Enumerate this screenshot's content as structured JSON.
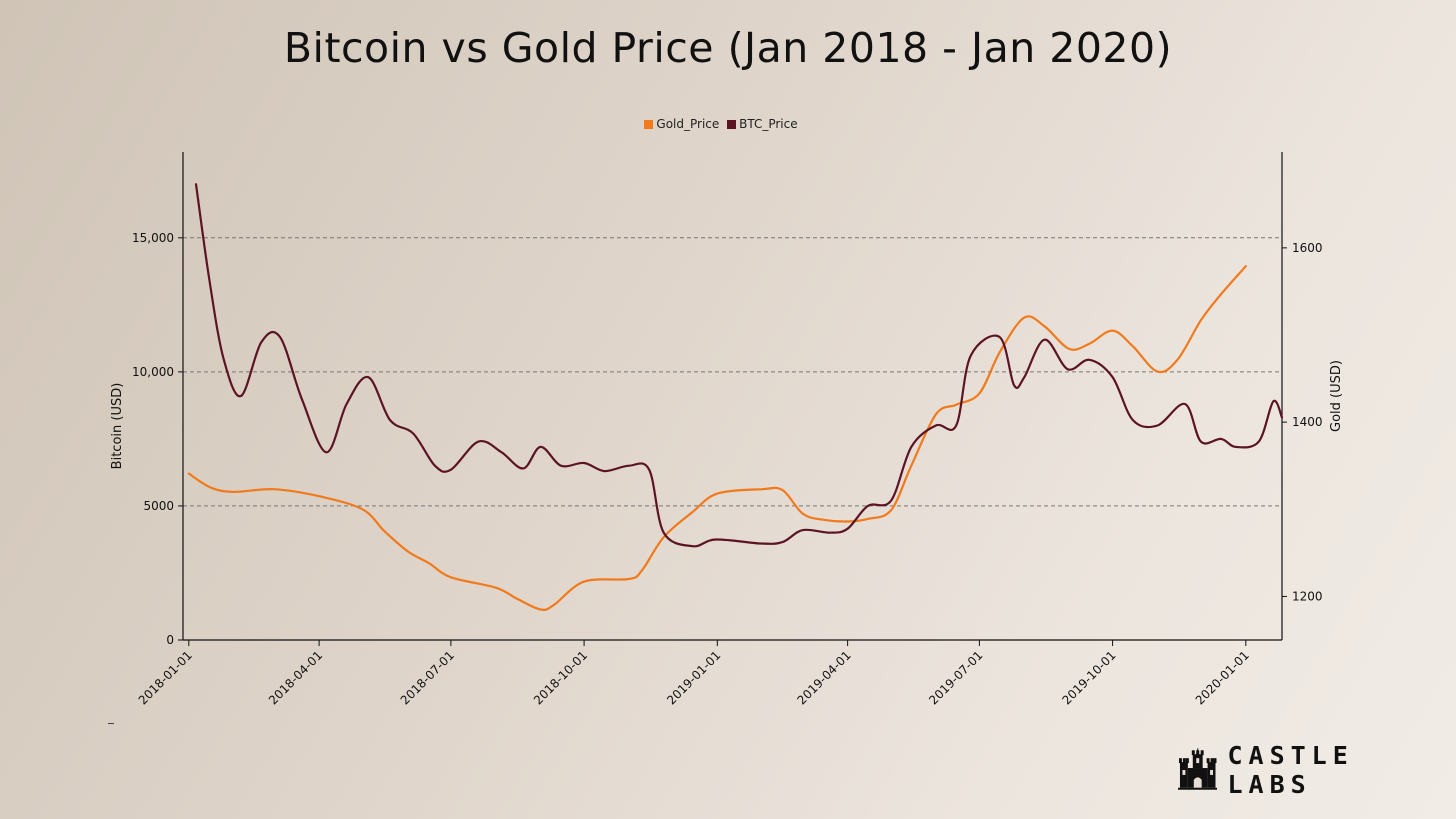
{
  "title": "Bitcoin vs Gold Price (Jan 2018 - Jan 2020)",
  "logo": {
    "text": "CASTLE LABS",
    "icon": "castle-icon"
  },
  "colors": {
    "gold": "#f07a1c",
    "btc": "#5c1424",
    "axis": "#111111",
    "grid": "#777777"
  },
  "chart_data": {
    "type": "line",
    "title": "Bitcoin vs Gold Price (Jan 2018 - Jan 2020)",
    "xlabel": "",
    "x_ticks": [
      "2018-01-01",
      "2018-04-01",
      "2018-07-01",
      "2018-10-01",
      "2019-01-01",
      "2019-04-01",
      "2019-07-01",
      "2019-10-01",
      "2020-01-01"
    ],
    "x_range": [
      "2017-12-28",
      "2020-01-26"
    ],
    "legend": [
      "Gold_Price",
      "BTC_Price"
    ],
    "legend_position": "top-center",
    "y_left": {
      "label": "Bitcoin (USD)",
      "range": [
        0,
        18200
      ],
      "ticks": [
        0,
        5000,
        10000,
        15000
      ],
      "tick_labels": [
        "0",
        "5000",
        "10,000",
        "15,000"
      ],
      "grid": true
    },
    "y_right": {
      "label": "Gold (USD)",
      "range": [
        1150,
        1710
      ],
      "ticks": [
        1200,
        1400,
        1600
      ],
      "tick_labels": [
        "1200",
        "1400",
        "1600"
      ]
    },
    "series": [
      {
        "name": "Gold_Price",
        "axis": "right",
        "points": [
          [
            "2018-01-01",
            1341
          ],
          [
            "2018-01-16",
            1325
          ],
          [
            "2018-02-01",
            1320
          ],
          [
            "2018-03-01",
            1323
          ],
          [
            "2018-04-01",
            1315
          ],
          [
            "2018-05-01",
            1300
          ],
          [
            "2018-05-16",
            1275
          ],
          [
            "2018-06-01",
            1252
          ],
          [
            "2018-06-16",
            1238
          ],
          [
            "2018-07-01",
            1222
          ],
          [
            "2018-08-01",
            1210
          ],
          [
            "2018-08-16",
            1197
          ],
          [
            "2018-09-01",
            1185
          ],
          [
            "2018-09-10",
            1190
          ],
          [
            "2018-10-01",
            1217
          ],
          [
            "2018-11-01",
            1220
          ],
          [
            "2018-11-10",
            1230
          ],
          [
            "2018-11-25",
            1268
          ],
          [
            "2018-12-15",
            1297
          ],
          [
            "2019-01-01",
            1318
          ],
          [
            "2019-02-01",
            1323
          ],
          [
            "2019-02-15",
            1322
          ],
          [
            "2019-03-01",
            1295
          ],
          [
            "2019-03-15",
            1288
          ],
          [
            "2019-04-01",
            1286
          ],
          [
            "2019-04-15",
            1289
          ],
          [
            "2019-05-01",
            1299
          ],
          [
            "2019-05-15",
            1350
          ],
          [
            "2019-06-01",
            1409
          ],
          [
            "2019-06-15",
            1420
          ],
          [
            "2019-07-01",
            1433
          ],
          [
            "2019-07-15",
            1480
          ],
          [
            "2019-08-01",
            1520
          ],
          [
            "2019-08-15",
            1510
          ],
          [
            "2019-09-01",
            1484
          ],
          [
            "2019-09-15",
            1490
          ],
          [
            "2019-10-01",
            1505
          ],
          [
            "2019-10-15",
            1487
          ],
          [
            "2019-11-01",
            1458
          ],
          [
            "2019-11-15",
            1472
          ],
          [
            "2019-12-01",
            1517
          ],
          [
            "2019-12-15",
            1547
          ],
          [
            "2020-01-01",
            1579
          ]
        ]
      },
      {
        "name": "BTC_Price",
        "axis": "left",
        "points": [
          [
            "2018-01-06",
            17000
          ],
          [
            "2018-01-15",
            13500
          ],
          [
            "2018-01-25",
            10500
          ],
          [
            "2018-02-06",
            9100
          ],
          [
            "2018-02-20",
            11100
          ],
          [
            "2018-03-05",
            11300
          ],
          [
            "2018-03-20",
            9000
          ],
          [
            "2018-04-06",
            7000
          ],
          [
            "2018-04-20",
            8800
          ],
          [
            "2018-05-05",
            9800
          ],
          [
            "2018-05-20",
            8200
          ],
          [
            "2018-06-05",
            7700
          ],
          [
            "2018-06-20",
            6500
          ],
          [
            "2018-07-01",
            6350
          ],
          [
            "2018-07-20",
            7400
          ],
          [
            "2018-08-05",
            7000
          ],
          [
            "2018-08-20",
            6400
          ],
          [
            "2018-09-01",
            7200
          ],
          [
            "2018-09-15",
            6500
          ],
          [
            "2018-10-01",
            6600
          ],
          [
            "2018-10-15",
            6300
          ],
          [
            "2018-11-01",
            6500
          ],
          [
            "2018-11-15",
            6350
          ],
          [
            "2018-11-25",
            4000
          ],
          [
            "2018-12-15",
            3500
          ],
          [
            "2018-12-31",
            3750
          ],
          [
            "2019-01-31",
            3600
          ],
          [
            "2019-02-15",
            3650
          ],
          [
            "2019-03-01",
            4100
          ],
          [
            "2019-03-20",
            4000
          ],
          [
            "2019-04-01",
            4150
          ],
          [
            "2019-04-15",
            5000
          ],
          [
            "2019-05-01",
            5200
          ],
          [
            "2019-05-15",
            7200
          ],
          [
            "2019-06-01",
            8000
          ],
          [
            "2019-06-15",
            8000
          ],
          [
            "2019-06-25",
            10600
          ],
          [
            "2019-07-15",
            11300
          ],
          [
            "2019-07-25",
            9500
          ],
          [
            "2019-08-01",
            9800
          ],
          [
            "2019-08-15",
            11200
          ],
          [
            "2019-08-31",
            10100
          ],
          [
            "2019-09-15",
            10450
          ],
          [
            "2019-10-01",
            9800
          ],
          [
            "2019-10-15",
            8200
          ],
          [
            "2019-11-01",
            8000
          ],
          [
            "2019-11-20",
            8800
          ],
          [
            "2019-12-01",
            7400
          ],
          [
            "2019-12-15",
            7500
          ],
          [
            "2019-12-25",
            7200
          ],
          [
            "2020-01-10",
            7400
          ],
          [
            "2020-01-20",
            8900
          ],
          [
            "2020-01-26",
            8300
          ]
        ]
      }
    ]
  }
}
